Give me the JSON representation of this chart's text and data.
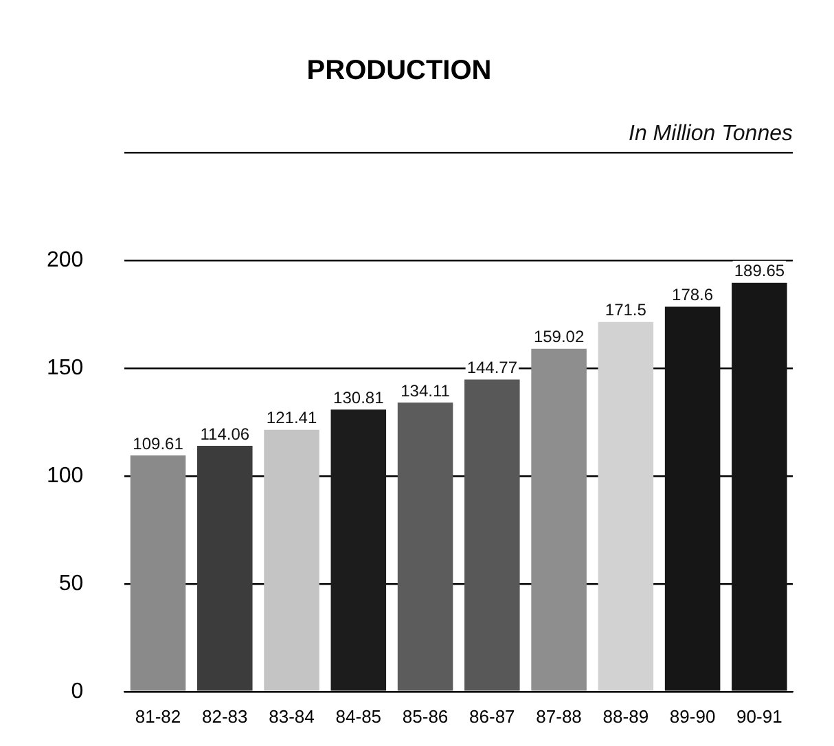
{
  "chart_data": {
    "type": "bar",
    "title": "PRODUCTION",
    "subtitle": "In Million Tonnes",
    "categories": [
      "81-82",
      "82-83",
      "83-84",
      "84-85",
      "85-86",
      "86-87",
      "87-88",
      "88-89",
      "89-90",
      "90-91"
    ],
    "values": [
      109.61,
      114.06,
      121.41,
      130.81,
      134.11,
      144.77,
      159.02,
      171.5,
      178.6,
      189.65
    ],
    "colors": [
      "#8a8a8a",
      "#3c3c3c",
      "#c4c4c4",
      "#1c1c1c",
      "#5c5c5c",
      "#585858",
      "#8e8e8e",
      "#d2d2d2",
      "#161616",
      "#161616"
    ],
    "ylim": [
      0,
      250
    ],
    "yticks": [
      0,
      50,
      100,
      150,
      200
    ],
    "grid": "y",
    "data_labels": true,
    "legend": false
  }
}
